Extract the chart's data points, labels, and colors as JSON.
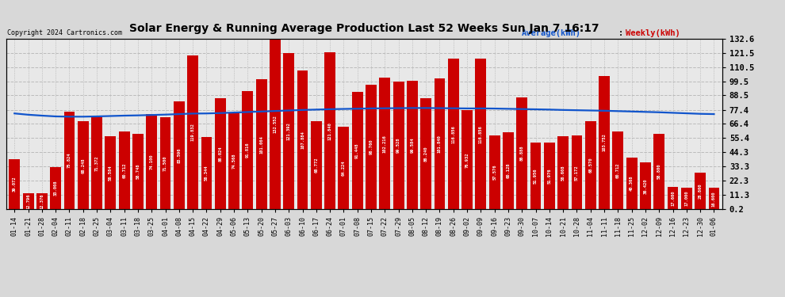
{
  "title": "Solar Energy & Running Average Production Last 52 Weeks Sun Jan 7 16:17",
  "copyright": "Copyright 2024 Cartronics.com",
  "legend_average": "Average(kWh)",
  "legend_weekly": "Weekly(kWh)",
  "bar_color": "#cc0000",
  "avg_line_color": "#1155cc",
  "avg_line_color2": "#000080",
  "background_color": "#d8d8d8",
  "plot_bg_color": "#e8e8e8",
  "grid_color": "#bbbbbb",
  "yticks": [
    0.2,
    11.3,
    22.3,
    33.3,
    44.3,
    55.4,
    66.4,
    77.4,
    88.5,
    99.5,
    110.5,
    121.5,
    132.6
  ],
  "xlabels": [
    "01-14",
    "01-21",
    "01-28",
    "02-04",
    "02-11",
    "02-18",
    "02-25",
    "03-04",
    "03-11",
    "03-18",
    "03-25",
    "04-01",
    "04-08",
    "04-15",
    "04-22",
    "04-29",
    "05-06",
    "05-13",
    "05-20",
    "05-27",
    "06-03",
    "06-10",
    "06-17",
    "06-24",
    "07-01",
    "07-08",
    "07-15",
    "07-22",
    "07-29",
    "08-05",
    "08-12",
    "08-19",
    "08-26",
    "09-02",
    "09-09",
    "09-16",
    "09-23",
    "09-30",
    "10-07",
    "10-14",
    "10-21",
    "10-28",
    "11-04",
    "11-11",
    "11-18",
    "11-25",
    "12-02",
    "12-09",
    "12-16",
    "12-23",
    "12-30",
    "01-06"
  ],
  "weekly_values": [
    39.072,
    12.796,
    12.376,
    33.008,
    75.824,
    68.248,
    71.372,
    56.584,
    60.712,
    58.748,
    74.1,
    71.5,
    83.596,
    119.832,
    56.344,
    86.024,
    74.568,
    91.816,
    101.064,
    132.552,
    121.392,
    107.884,
    68.772,
    121.84,
    64.224,
    91.448,
    96.76,
    102.216,
    99.528,
    99.584,
    86.24,
    101.84,
    116.856,
    76.932,
    116.856,
    57.576,
    60.128,
    86.888,
    51.956,
    51.976,
    56.608,
    57.172,
    68.57,
    103.752,
    60.712,
    40.368,
    36.42,
    58.8,
    17.6,
    17.0,
    28.8,
    16.6
  ],
  "avg_values": [
    74.5,
    73.5,
    72.8,
    72.2,
    72.0,
    72.0,
    72.2,
    72.5,
    72.8,
    73.0,
    73.3,
    73.6,
    74.0,
    74.4,
    74.5,
    74.8,
    75.2,
    75.6,
    76.0,
    76.4,
    76.8,
    77.2,
    77.5,
    77.8,
    78.0,
    78.2,
    78.4,
    78.5,
    78.6,
    78.7,
    78.7,
    78.6,
    78.5,
    78.4,
    78.4,
    78.3,
    78.1,
    77.9,
    77.7,
    77.5,
    77.2,
    77.0,
    76.8,
    76.6,
    76.3,
    76.0,
    75.7,
    75.4,
    75.0,
    74.6,
    74.2,
    74.0
  ]
}
